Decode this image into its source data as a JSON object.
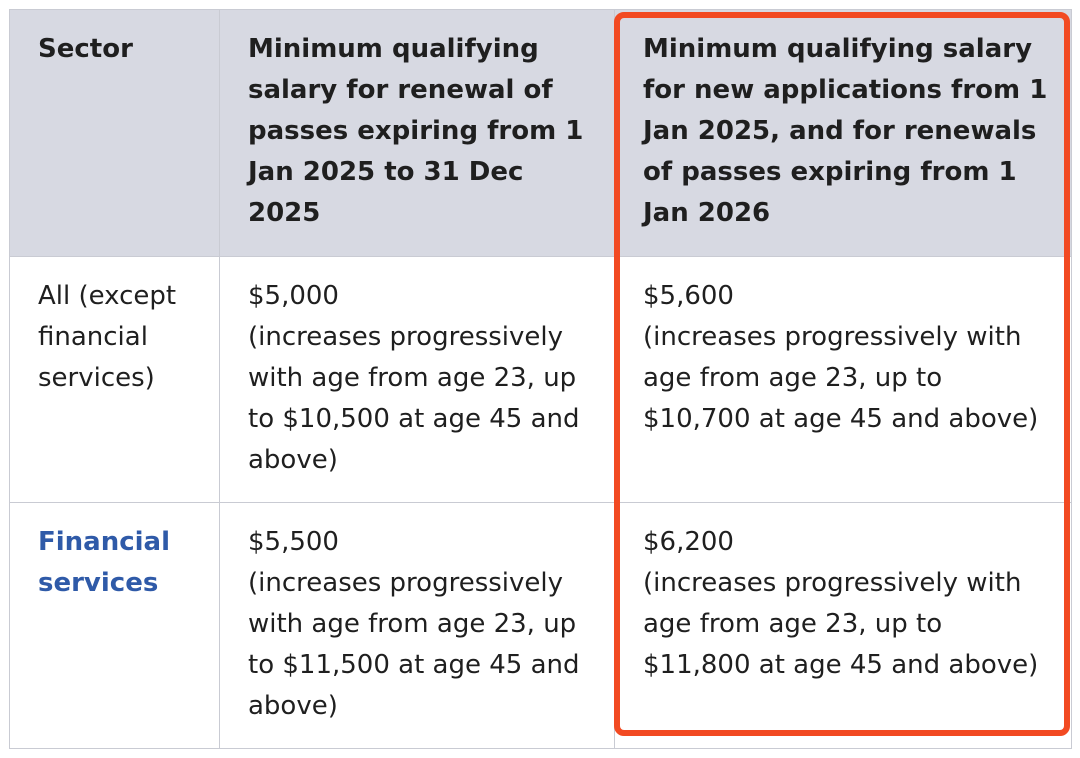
{
  "table": {
    "headers": {
      "sector": "Sector",
      "renewal_2025": "Minimum qualifying salary for renewal of passes expiring from 1 Jan 2025 to 31 Dec 2025",
      "new_2025": "Minimum qualifying salary for new applications from 1 Jan 2025, and for renewals of passes expiring from 1 Jan 2026"
    },
    "rows": [
      {
        "sector": "All (except financial services)",
        "renewal_2025": {
          "amount": "$5,000",
          "note": "(increases progressively with age from age 23, up to $10,500 at age 45 and above)"
        },
        "new_2025": {
          "amount": "$5,600",
          "note": "(increases progressively with age from age 23, up to $10,700 at age 45 and above)"
        }
      },
      {
        "sector": "Financial services",
        "renewal_2025": {
          "amount": "$5,500",
          "note": "(increases progressively with age from age 23, up to $11,500 at age 45 and above)"
        },
        "new_2025": {
          "amount": "$6,200",
          "note": "(increases progressively with age from age 23, up to $11,800 at age 45 and above)"
        }
      }
    ]
  },
  "colors": {
    "header_bg": "#d7d9e2",
    "border": "#c9cbd3",
    "link": "#2f5aa8",
    "highlight": "#f24a22"
  }
}
